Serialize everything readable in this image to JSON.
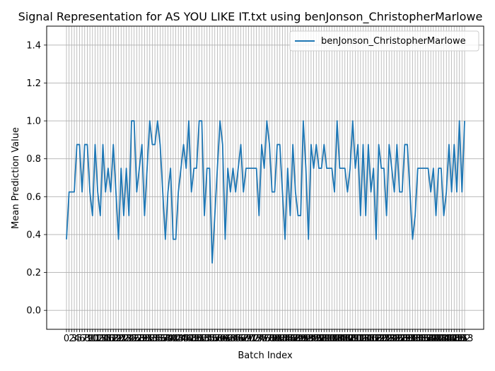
{
  "chart_data": {
    "type": "line",
    "title": "Signal Representation for AS YOU LIKE IT.txt using benJonson_ChristopherMarlowe",
    "xlabel": "Batch Index",
    "ylabel": "Mean Prediction Value",
    "ylim": [
      -0.1,
      1.5
    ],
    "yticks": [
      0.0,
      0.2,
      0.4,
      0.6,
      0.8,
      1.0,
      1.2,
      1.4
    ],
    "ytick_labels": [
      "0.0",
      "0.2",
      "0.4",
      "0.6",
      "0.8",
      "1.0",
      "1.2",
      "1.4"
    ],
    "grid": true,
    "legend_position": "top-right",
    "series": [
      {
        "name": "benJonson_ChristopherMarlowe",
        "color": "#1f77b4",
        "values": [
          0.375,
          0.625,
          0.625,
          0.625,
          0.875,
          0.875,
          0.625,
          0.875,
          0.875,
          0.625,
          0.5,
          0.875,
          0.625,
          0.5,
          0.875,
          0.625,
          0.75,
          0.625,
          0.875,
          0.625,
          0.375,
          0.75,
          0.5,
          0.75,
          0.5,
          1.0,
          1.0,
          0.625,
          0.75,
          0.875,
          0.5,
          0.75,
          1.0,
          0.875,
          0.875,
          1.0,
          0.875,
          0.625,
          0.375,
          0.625,
          0.75,
          0.375,
          0.375,
          0.625,
          0.75,
          0.875,
          0.75,
          1.0,
          0.625,
          0.75,
          0.75,
          1.0,
          1.0,
          0.5,
          0.75,
          0.75,
          0.25,
          0.5,
          0.75,
          1.0,
          0.875,
          0.375,
          0.75,
          0.625,
          0.75,
          0.625,
          0.75,
          0.875,
          0.625,
          0.75,
          0.75,
          0.75,
          0.75,
          0.75,
          0.5,
          0.875,
          0.75,
          1.0,
          0.875,
          0.625,
          0.625,
          0.875,
          0.875,
          0.625,
          0.375,
          0.75,
          0.5,
          0.875,
          0.625,
          0.5,
          0.5,
          1.0,
          0.75,
          0.375,
          0.875,
          0.75,
          0.875,
          0.75,
          0.75,
          0.875,
          0.75,
          0.75,
          0.75,
          0.625,
          1.0,
          0.75,
          0.75,
          0.75,
          0.625,
          0.75,
          1.0,
          0.75,
          0.875,
          0.5,
          0.875,
          0.5,
          0.875,
          0.625,
          0.75,
          0.375,
          0.875,
          0.75,
          0.75,
          0.5,
          0.875,
          0.75,
          0.625,
          0.875,
          0.625,
          0.625,
          0.875,
          0.875,
          0.625,
          0.375,
          0.5,
          0.75,
          0.75,
          0.75,
          0.75,
          0.75,
          0.625,
          0.75,
          0.5,
          0.75,
          0.75,
          0.5,
          0.625,
          0.875,
          0.625,
          0.875,
          0.625,
          1.0,
          0.625,
          1.0
        ]
      }
    ],
    "x_start": 0,
    "xtick_labels_visible": [
      "0",
      "2",
      "3",
      "4",
      "5",
      "6",
      "7",
      "8",
      "9",
      "10",
      "11",
      "12",
      "13",
      "14",
      "15",
      "16",
      "17",
      "18",
      "19",
      "20",
      "21",
      "22",
      "23",
      "24",
      "25",
      "26",
      "27",
      "28",
      "29",
      "30",
      "31",
      "32",
      "33",
      "34",
      "35",
      "36",
      "37",
      "38",
      "39",
      "40",
      "41",
      "42",
      "43",
      "44",
      "45",
      "46",
      "47",
      "48",
      "49",
      "50",
      "51",
      "52",
      "53",
      "54",
      "55",
      "56",
      "57",
      "58",
      "59",
      "60",
      "61",
      "62",
      "63",
      "64",
      "65",
      "66",
      "67",
      "68",
      "69",
      "70",
      "71",
      "72",
      "73",
      "74",
      "75",
      "76",
      "77",
      "78",
      "79",
      "80",
      "81",
      "82",
      "83",
      "84",
      "85",
      "86",
      "87",
      "88",
      "89",
      "90",
      "91",
      "92",
      "93",
      "94",
      "95",
      "96",
      "97",
      "98",
      "99",
      "100",
      "101",
      "102",
      "103",
      "104",
      "105",
      "106",
      "107",
      "108",
      "109",
      "110",
      "111",
      "112",
      "113",
      "114",
      "115",
      "116",
      "117",
      "118",
      "119",
      "120",
      "121",
      "122",
      "123",
      "124",
      "125",
      "126",
      "127",
      "128",
      "129",
      "130",
      "131",
      "132",
      "133",
      "134",
      "135",
      "136",
      "137",
      "138",
      "139",
      "140",
      "141",
      "142",
      "143",
      "144",
      "145",
      "146",
      "147",
      "148",
      "149",
      "150",
      "151",
      "152",
      "153"
    ]
  }
}
